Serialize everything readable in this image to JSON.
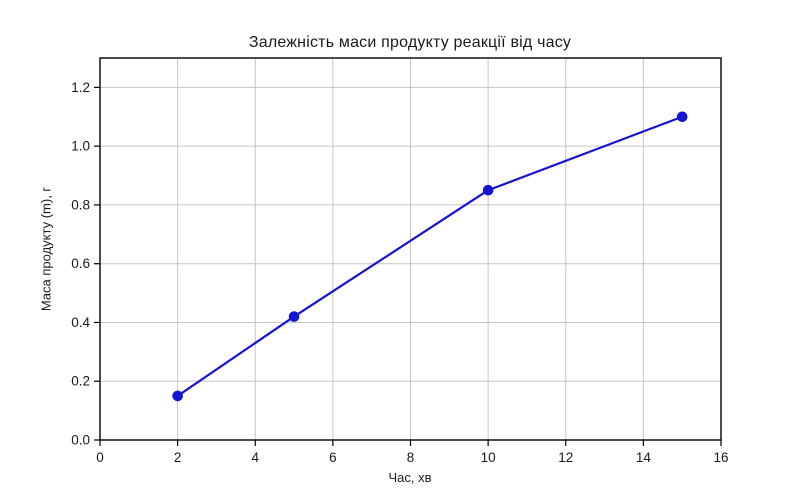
{
  "chart_data": {
    "type": "line",
    "title": "Залежність маси продукту реакції від часу",
    "xlabel": "Час, хв",
    "ylabel": "Маса продукту (m), г",
    "x": [
      2,
      5,
      10,
      15
    ],
    "y": [
      0.15,
      0.42,
      0.85,
      1.1
    ],
    "xlim": [
      0,
      16
    ],
    "ylim": [
      0,
      1.3
    ],
    "xticks": [
      0,
      2,
      4,
      6,
      8,
      10,
      12,
      14,
      16
    ],
    "xtick_labels": [
      "0",
      "2",
      "4",
      "6",
      "8",
      "10",
      "12",
      "14",
      "16"
    ],
    "yticks": [
      0.0,
      0.2,
      0.4,
      0.6,
      0.8,
      1.0,
      1.2
    ],
    "ytick_labels": [
      "0.0",
      "0.2",
      "0.4",
      "0.6",
      "0.8",
      "1.0",
      "1.2"
    ],
    "grid": true,
    "legend": null,
    "colors": {
      "line": "#1414d2",
      "marker": "#1414d2",
      "grid": "#c6c6c6",
      "spine": "#000000",
      "background": "#ffffff",
      "text": "#1a1a1a"
    }
  }
}
